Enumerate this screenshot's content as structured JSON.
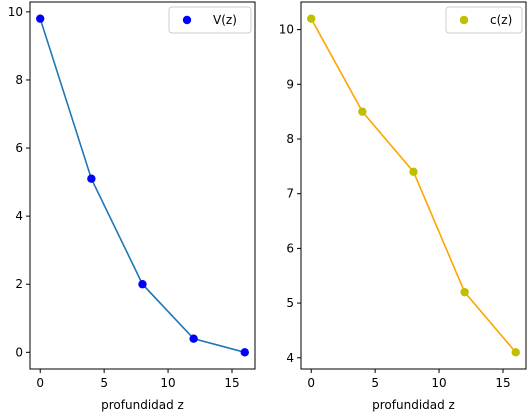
{
  "chart_data": [
    {
      "type": "line",
      "x": [
        0,
        4,
        8,
        12,
        16
      ],
      "series": [
        {
          "name": "V(z)",
          "values": [
            9.8,
            5.1,
            2.0,
            0.4,
            0.0
          ],
          "line_color": "#1f77b4",
          "marker_color": "#0000ff"
        }
      ],
      "xlabel": "profundidad z",
      "ylabel": "",
      "title": "",
      "xlim": [
        -0.8,
        16.8
      ],
      "ylim": [
        -0.49,
        10.29
      ],
      "xticks": [
        0,
        5,
        10,
        15
      ],
      "yticks": [
        0,
        2,
        4,
        6,
        8,
        10
      ],
      "grid": false,
      "legend_position": "top-right"
    },
    {
      "type": "line",
      "x": [
        0,
        4,
        8,
        12,
        16
      ],
      "series": [
        {
          "name": "c(z)",
          "values": [
            10.2,
            8.5,
            7.4,
            5.2,
            4.1
          ],
          "line_color": "#ffa500",
          "marker_color": "#bfbf00"
        }
      ],
      "xlabel": "profundidad z",
      "ylabel": "",
      "title": "",
      "xlim": [
        -0.8,
        16.8
      ],
      "ylim": [
        3.795,
        10.505
      ],
      "xticks": [
        0,
        5,
        10,
        15
      ],
      "yticks": [
        4,
        5,
        6,
        7,
        8,
        9,
        10
      ],
      "grid": false,
      "legend_position": "top-right"
    }
  ]
}
